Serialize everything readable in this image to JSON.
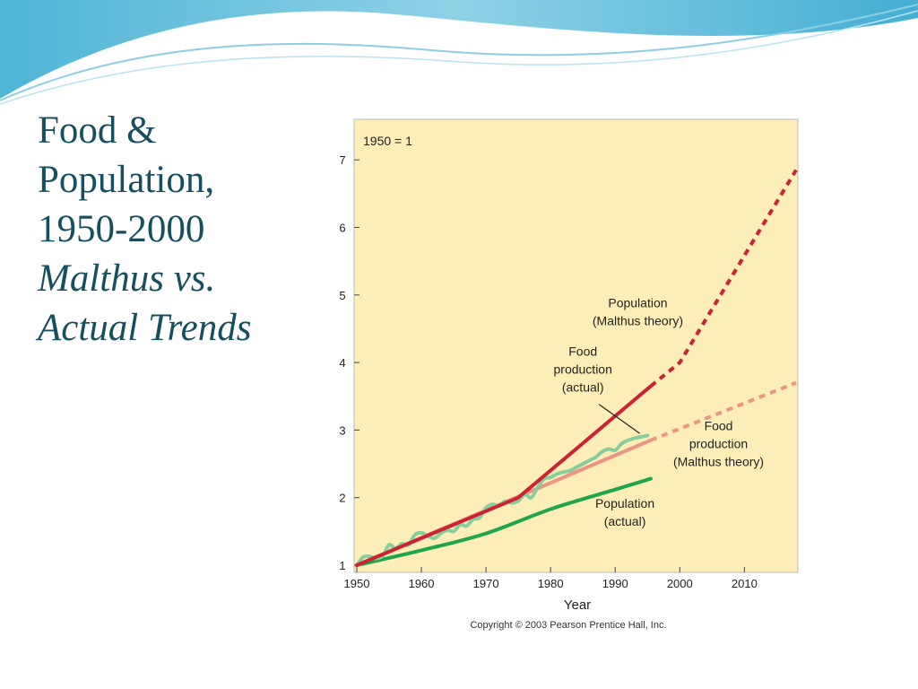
{
  "slide": {
    "title_lines": [
      "Food &",
      "Population,",
      "1950-2000"
    ],
    "subtitle_lines": [
      "Malthus vs.",
      "Actual Trends"
    ]
  },
  "colors": {
    "title": "#16505e",
    "plot_background": "#fdeeb8",
    "population_malthus": "#cc2233",
    "food_malthus": "#eb9582",
    "food_actual": "#86cf9c",
    "population_actual": "#1da64a"
  },
  "chart_data": {
    "type": "line",
    "title": "",
    "note": "1950 = 1",
    "xlabel": "Year",
    "ylabel": "",
    "xlim": [
      1950,
      2018
    ],
    "ylim": [
      1,
      7.6
    ],
    "xticks": [
      1950,
      1960,
      1970,
      1980,
      1990,
      2000,
      2010
    ],
    "yticks": [
      1,
      2,
      3,
      4,
      5,
      6,
      7
    ],
    "grid": false,
    "legend": "none",
    "copyright": "Copyright © 2003 Pearson Prentice Hall, Inc.",
    "series": [
      {
        "key": "population_malthus",
        "label_lines": [
          "Population",
          "(Malthus theory)"
        ],
        "solid": [
          [
            1950,
            1
          ],
          [
            1975,
            2
          ],
          [
            1995.5,
            3.65
          ]
        ],
        "dashed": [
          [
            1995.5,
            3.65
          ],
          [
            2000,
            4.0
          ],
          [
            2018,
            6.85
          ]
        ]
      },
      {
        "key": "food_malthus",
        "label_lines": [
          "Food",
          "production",
          "(Malthus theory)"
        ],
        "solid": [
          [
            1950,
            1
          ],
          [
            1995.5,
            2.85
          ]
        ],
        "dashed": [
          [
            1995.5,
            2.85
          ],
          [
            2018,
            3.7
          ]
        ]
      },
      {
        "key": "food_actual",
        "label_lines": [
          "Food",
          "production",
          "(actual)"
        ],
        "points": [
          [
            1950,
            1
          ],
          [
            1951,
            1.12
          ],
          [
            1952,
            1.13
          ],
          [
            1953,
            1.1
          ],
          [
            1954,
            1.14
          ],
          [
            1955,
            1.3
          ],
          [
            1956,
            1.25
          ],
          [
            1957,
            1.32
          ],
          [
            1958,
            1.3
          ],
          [
            1959,
            1.45
          ],
          [
            1960,
            1.48
          ],
          [
            1961,
            1.43
          ],
          [
            1962,
            1.4
          ],
          [
            1963,
            1.47
          ],
          [
            1964,
            1.52
          ],
          [
            1965,
            1.5
          ],
          [
            1966,
            1.6
          ],
          [
            1967,
            1.58
          ],
          [
            1968,
            1.68
          ],
          [
            1969,
            1.7
          ],
          [
            1970,
            1.85
          ],
          [
            1971,
            1.9
          ],
          [
            1972,
            1.88
          ],
          [
            1973,
            1.95
          ],
          [
            1974,
            1.92
          ],
          [
            1975,
            1.95
          ],
          [
            1976,
            2.05
          ],
          [
            1977,
            2.0
          ],
          [
            1978,
            2.15
          ],
          [
            1979,
            2.28
          ],
          [
            1980,
            2.3
          ],
          [
            1981,
            2.35
          ],
          [
            1982,
            2.38
          ],
          [
            1983,
            2.4
          ],
          [
            1984,
            2.45
          ],
          [
            1985,
            2.5
          ],
          [
            1986,
            2.55
          ],
          [
            1987,
            2.6
          ],
          [
            1988,
            2.68
          ],
          [
            1989,
            2.72
          ],
          [
            1990,
            2.7
          ],
          [
            1991,
            2.8
          ],
          [
            1992,
            2.85
          ],
          [
            1993,
            2.88
          ],
          [
            1994,
            2.9
          ],
          [
            1995,
            2.92
          ]
        ]
      },
      {
        "key": "population_actual",
        "label_lines": [
          "Population",
          "(actual)"
        ],
        "points": [
          [
            1950,
            1
          ],
          [
            1960,
            1.22
          ],
          [
            1970,
            1.47
          ],
          [
            1980,
            1.83
          ],
          [
            1990,
            2.12
          ],
          [
            1995.5,
            2.28
          ]
        ]
      }
    ],
    "annotations": [
      {
        "series": "population_malthus",
        "x": 1993.5,
        "y": 4.82
      },
      {
        "series": "food_actual",
        "x": 1985.0,
        "y": 4.1,
        "pointer": [
          [
            1987.5,
            3.38
          ],
          [
            1993.8,
            2.95
          ]
        ]
      },
      {
        "series": "food_malthus",
        "x": 2006.0,
        "y": 3.0
      },
      {
        "series": "population_actual",
        "x": 1991.5,
        "y": 1.85
      }
    ]
  }
}
